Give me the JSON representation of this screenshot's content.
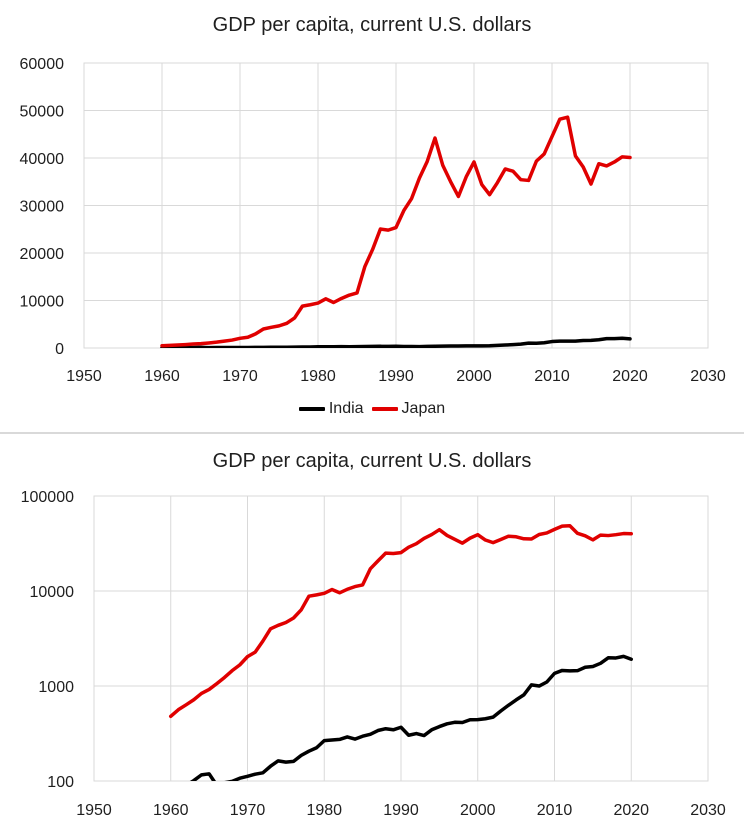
{
  "chart_data": [
    {
      "type": "line",
      "title": "GDP per capita, current U.S. dollars",
      "xlabel": "",
      "ylabel": "",
      "yscale": "linear",
      "xlim": [
        1950,
        2030
      ],
      "ylim": [
        0,
        60000
      ],
      "x_ticks": [
        "1950",
        "1960",
        "1970",
        "1980",
        "1990",
        "2000",
        "2010",
        "2020",
        "2030"
      ],
      "y_ticks": [
        "0",
        "10000",
        "20000",
        "30000",
        "40000",
        "50000",
        "60000"
      ],
      "legend": "bottom-center",
      "grid": true,
      "series": [
        {
          "name": "India",
          "color": "#000000",
          "x": [
            1960,
            1961,
            1962,
            1963,
            1964,
            1965,
            1966,
            1967,
            1968,
            1969,
            1970,
            1971,
            1972,
            1973,
            1974,
            1975,
            1976,
            1977,
            1978,
            1979,
            1980,
            1981,
            1982,
            1983,
            1984,
            1985,
            1986,
            1987,
            1988,
            1989,
            1990,
            1991,
            1992,
            1993,
            1994,
            1995,
            1996,
            1997,
            1998,
            1999,
            2000,
            2001,
            2002,
            2003,
            2004,
            2005,
            2006,
            2007,
            2008,
            2009,
            2010,
            2011,
            2012,
            2013,
            2014,
            2015,
            2016,
            2017,
            2018,
            2019,
            2020
          ],
          "values": [
            82,
            85,
            90,
            101,
            116,
            119,
            90,
            96,
            99,
            107,
            112,
            118,
            122,
            143,
            163,
            158,
            161,
            186,
            206,
            224,
            266,
            270,
            274,
            291,
            276,
            296,
            310,
            340,
            355,
            346,
            368,
            303,
            316,
            301,
            346,
            374,
            400,
            415,
            413,
            441,
            443,
            452,
            470,
            546,
            627,
            714,
            806,
            1028,
            999,
            1102,
            1358,
            1458,
            1444,
            1450,
            1574,
            1606,
            1733,
            1982,
            1974,
            2050,
            1913
          ]
        },
        {
          "name": "Japan",
          "color": "#e00000",
          "x": [
            1960,
            1961,
            1962,
            1963,
            1964,
            1965,
            1966,
            1967,
            1968,
            1969,
            1970,
            1971,
            1972,
            1973,
            1974,
            1975,
            1976,
            1977,
            1978,
            1979,
            1980,
            1981,
            1982,
            1983,
            1984,
            1985,
            1986,
            1987,
            1988,
            1989,
            1990,
            1991,
            1992,
            1993,
            1994,
            1995,
            1996,
            1997,
            1998,
            1999,
            2000,
            2001,
            2002,
            2003,
            2004,
            2005,
            2006,
            2007,
            2008,
            2009,
            2010,
            2011,
            2012,
            2013,
            2014,
            2015,
            2016,
            2017,
            2018,
            2019,
            2020
          ],
          "values": [
            479,
            564,
            634,
            717,
            835,
            920,
            1059,
            1229,
            1451,
            1669,
            2038,
            2272,
            2967,
            3998,
            4354,
            4659,
            5198,
            6335,
            8821,
            9105,
            9463,
            10361,
            9578,
            10425,
            11127,
            11585,
            17114,
            20749,
            25052,
            24813,
            25359,
            28925,
            31465,
            35766,
            39269,
            44198,
            38437,
            35022,
            31903,
            36027,
            39169,
            34406,
            32289,
            34808,
            37688,
            37218,
            35434,
            35275,
            39339,
            40855,
            44508,
            48168,
            48603,
            40455,
            38109,
            34524,
            38794,
            38332,
            39159,
            40247,
            40113
          ]
        }
      ]
    },
    {
      "type": "line",
      "title": "GDP per capita, current U.S. dollars",
      "xlabel": "",
      "ylabel": "",
      "yscale": "log",
      "xlim": [
        1950,
        2030
      ],
      "ylim": [
        100,
        100000
      ],
      "x_ticks": [
        "1950",
        "1960",
        "1970",
        "1980",
        "1990",
        "2000",
        "2010",
        "2020",
        "2030"
      ],
      "y_ticks": [
        "100",
        "1000",
        "10000",
        "100000"
      ],
      "legend": "none",
      "grid": true,
      "series": [
        {
          "name": "India",
          "color": "#000000",
          "same_values_as_chart": 0,
          "series_index": 0
        },
        {
          "name": "Japan",
          "color": "#e00000",
          "same_values_as_chart": 0,
          "series_index": 1
        }
      ]
    }
  ]
}
